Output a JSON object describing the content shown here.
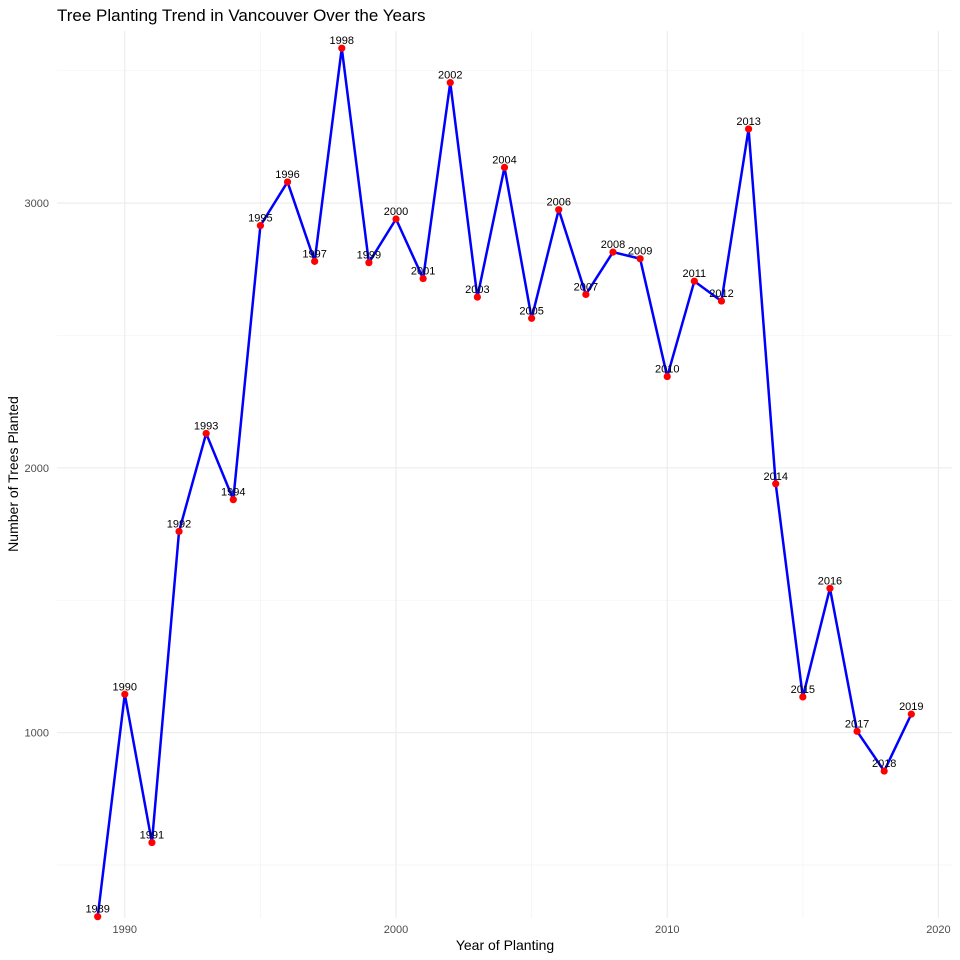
{
  "chart_data": {
    "type": "line",
    "title": "Tree Planting Trend in Vancouver Over the Years",
    "xlabel": "Year of Planting",
    "ylabel": "Number of Trees Planted",
    "xlim": [
      1987.5,
      2020.5
    ],
    "ylim": [
      300,
      3650
    ],
    "x_ticks": [
      1990,
      2000,
      2010,
      2020
    ],
    "y_ticks": [
      1000,
      2000,
      3000
    ],
    "grid": true,
    "line_color": "#0000ff",
    "point_color": "#ff0000",
    "series": [
      {
        "x": [
          1989,
          1990,
          1991,
          1992,
          1993,
          1994,
          1995,
          1996,
          1997,
          1998,
          1999,
          2000,
          2001,
          2002,
          2003,
          2004,
          2005,
          2006,
          2007,
          2008,
          2009,
          2010,
          2011,
          2012,
          2013,
          2014,
          2015,
          2016,
          2017,
          2018,
          2019
        ],
        "y": [
          305,
          1145,
          585,
          1760,
          2130,
          1880,
          2915,
          3080,
          2780,
          3585,
          2775,
          2940,
          2715,
          3455,
          2645,
          3135,
          2565,
          2975,
          2655,
          2815,
          2790,
          2345,
          2705,
          2630,
          3280,
          1940,
          1135,
          1545,
          1005,
          855,
          1070
        ],
        "labels": [
          "1989",
          "1990",
          "1991",
          "1992",
          "1993",
          "1994",
          "1995",
          "1996",
          "1997",
          "1998",
          "1999",
          "2000",
          "2001",
          "2002",
          "2003",
          "2004",
          "2005",
          "2006",
          "2007",
          "2008",
          "2009",
          "2010",
          "2011",
          "2012",
          "2013",
          "2014",
          "2015",
          "2016",
          "2017",
          "2018",
          "2019"
        ]
      }
    ]
  }
}
